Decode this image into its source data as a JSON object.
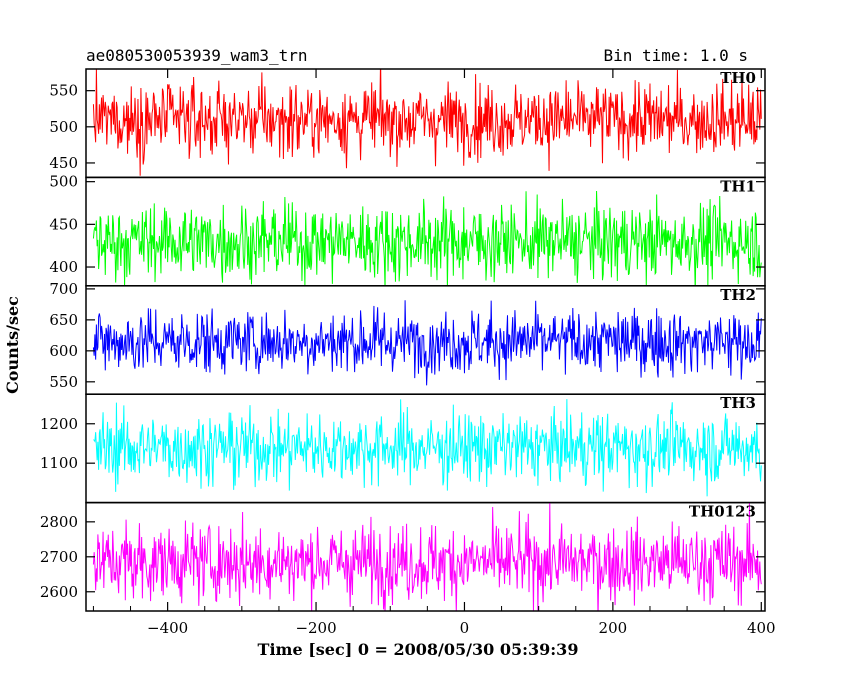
{
  "header": {
    "title": "ae080530053939_wam3_trn",
    "bin_time": "Bin time: 1.0 s"
  },
  "chart_data": {
    "type": "line",
    "xlabel": "Time [sec] 0 = 2008/05/30 05:39:39",
    "ylabel": "Counts/sec",
    "xlim": [
      -510,
      405
    ],
    "x_ticks": [
      -400,
      -200,
      0,
      200,
      400
    ],
    "x_tick_labels": [
      "−400",
      "−200",
      "0",
      "200",
      "400"
    ],
    "x_range": [
      -500,
      400
    ],
    "bin_time_s": 1.0,
    "grid": false,
    "panels": [
      {
        "name": "TH0",
        "color": "#ff0000",
        "ylim": [
          430,
          580
        ],
        "yticks": [
          450,
          500,
          550
        ],
        "ytick_labels": [
          "450",
          "500",
          "550"
        ],
        "mean": 510,
        "spread": 25
      },
      {
        "name": "TH1",
        "color": "#00ff00",
        "ylim": [
          378,
          505
        ],
        "yticks": [
          400,
          450,
          500
        ],
        "ytick_labels": [
          "400",
          "450",
          "500"
        ],
        "mean": 430,
        "spread": 22
      },
      {
        "name": "TH2",
        "color": "#0000ff",
        "ylim": [
          530,
          705
        ],
        "yticks": [
          550,
          600,
          650,
          700
        ],
        "ytick_labels": [
          "550",
          "600",
          "650",
          "700"
        ],
        "mean": 615,
        "spread": 26
      },
      {
        "name": "TH3",
        "color": "#00ffff",
        "ylim": [
          1000,
          1275
        ],
        "yticks": [
          1100,
          1200
        ],
        "ytick_labels": [
          "1100",
          "1200"
        ],
        "mean": 1140,
        "spread": 45
      },
      {
        "name": "TH0123",
        "color": "#ff00ff",
        "ylim": [
          2545,
          2855
        ],
        "yticks": [
          2600,
          2700,
          2800
        ],
        "ytick_labels": [
          "2600",
          "2700",
          "2800"
        ],
        "mean": 2685,
        "spread": 55
      }
    ]
  }
}
